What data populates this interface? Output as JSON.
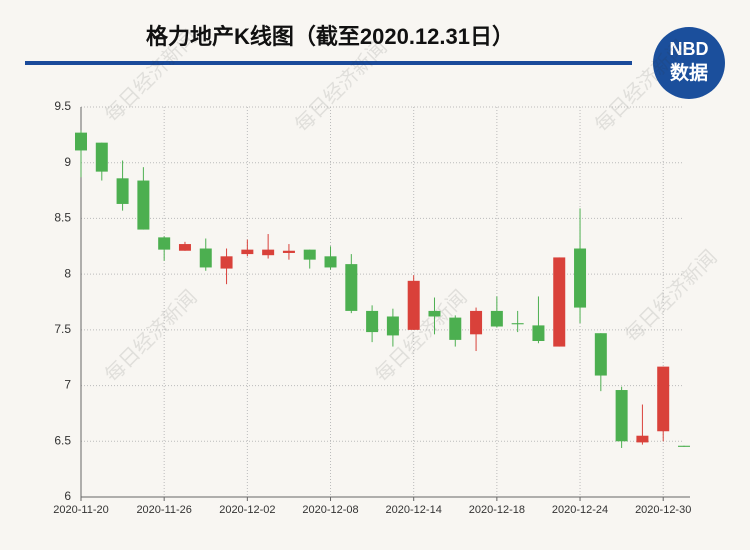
{
  "chart_data": {
    "type": "candlestick",
    "title": "格力地产K线图（截至2020.12.31日）",
    "logo": {
      "top": "NBD",
      "bottom": "数据"
    },
    "watermark": "每日经济新闻",
    "categories": [
      "2020-11-20",
      null,
      null,
      null,
      "2020-11-26",
      null,
      null,
      null,
      "2020-12-02",
      null,
      null,
      null,
      "2020-12-08",
      null,
      null,
      null,
      "2020-12-14",
      null,
      null,
      null,
      "2020-12-18",
      null,
      null,
      null,
      "2020-12-24",
      null,
      null,
      null,
      "2020-12-30",
      null
    ],
    "open": [
      9.27,
      9.18,
      8.86,
      8.84,
      8.33,
      8.21,
      8.23,
      8.05,
      8.18,
      8.17,
      8.19,
      8.22,
      8.16,
      8.09,
      7.67,
      7.62,
      7.5,
      7.67,
      7.61,
      7.46,
      7.67,
      7.56,
      7.54,
      7.35,
      8.23,
      7.47,
      6.96,
      6.49,
      6.59,
      6.46
    ],
    "high": [
      9.29,
      9.18,
      9.02,
      8.96,
      8.34,
      8.29,
      8.32,
      8.23,
      8.31,
      8.36,
      8.27,
      8.22,
      8.25,
      8.18,
      7.72,
      7.69,
      7.99,
      7.79,
      7.63,
      7.7,
      7.8,
      7.67,
      7.8,
      8.15,
      8.59,
      7.47,
      6.99,
      6.83,
      7.17,
      6.46
    ],
    "low": [
      8.87,
      8.84,
      8.57,
      8.4,
      8.12,
      8.21,
      8.03,
      7.91,
      8.16,
      8.14,
      8.13,
      8.05,
      8.04,
      7.65,
      7.39,
      7.35,
      7.5,
      7.46,
      7.35,
      7.31,
      7.52,
      7.48,
      7.38,
      7.35,
      7.56,
      6.95,
      6.44,
      6.47,
      6.5,
      6.45
    ],
    "close": [
      9.11,
      8.92,
      8.63,
      8.4,
      8.22,
      8.27,
      8.06,
      8.16,
      8.22,
      8.22,
      8.21,
      8.13,
      8.06,
      7.67,
      7.48,
      7.45,
      7.94,
      7.62,
      7.41,
      7.67,
      7.53,
      7.55,
      7.4,
      8.15,
      7.7,
      7.09,
      6.5,
      6.55,
      7.17,
      6.45
    ],
    "up_color": "#d9413a",
    "down_color": "#4caf50",
    "ylim": [
      6,
      9.5
    ],
    "yticks": [
      6,
      6.5,
      7,
      7.5,
      8,
      8.5,
      9,
      9.5
    ],
    "grid": true
  }
}
